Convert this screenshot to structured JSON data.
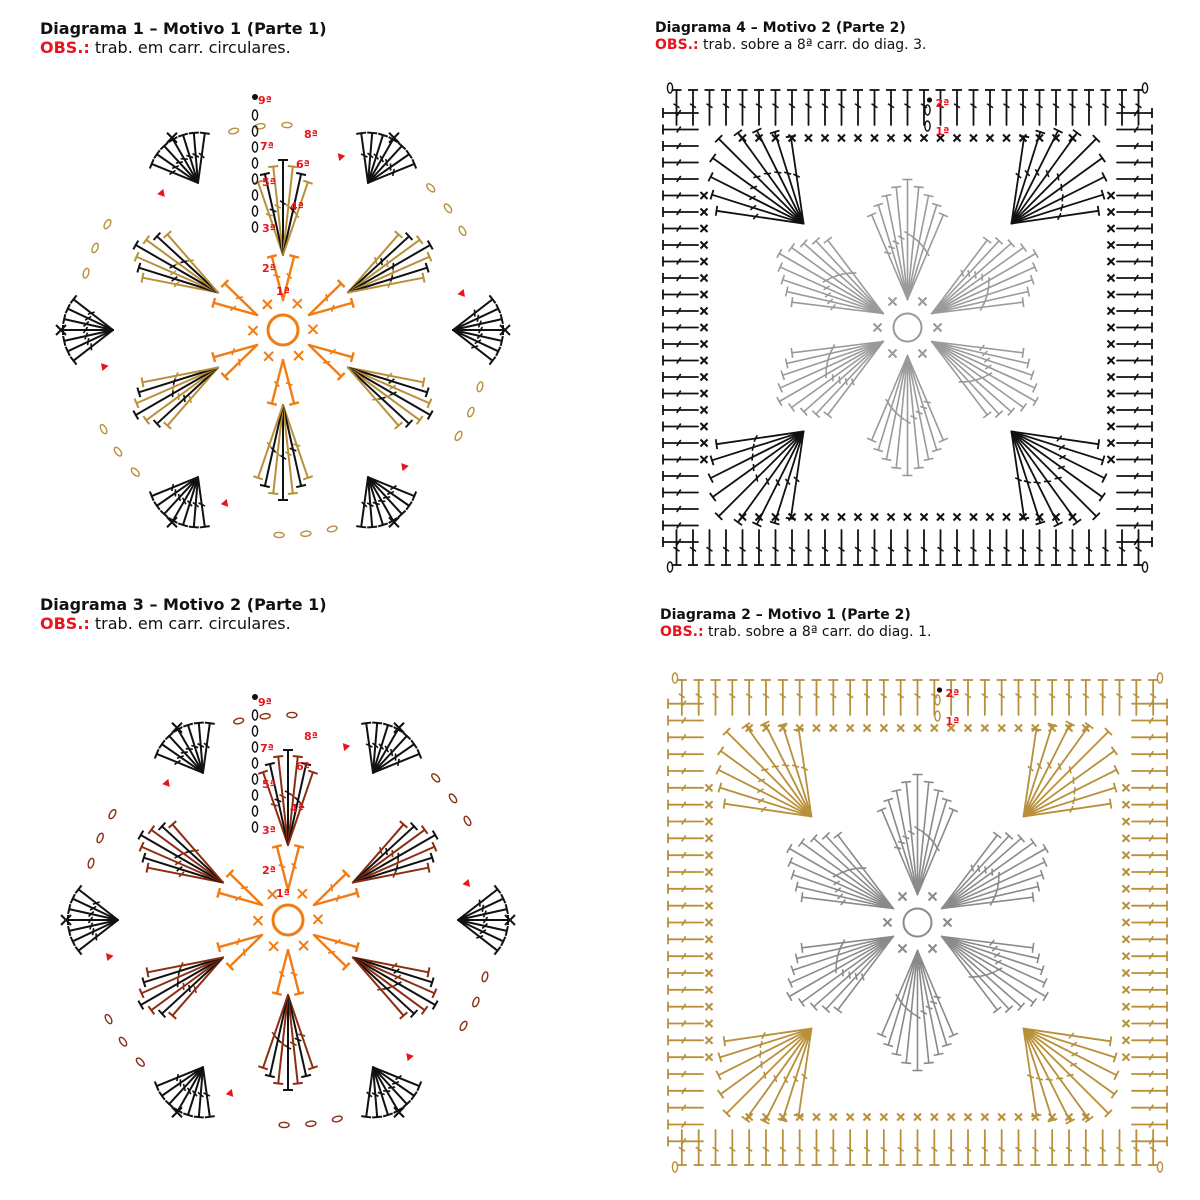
{
  "panels": [
    {
      "id": "d1",
      "title": "Diagrama 1 – Motivo 1 (Parte 1)",
      "obs_label": "OBS.:",
      "obs_text": "trab. em carr. circulares.",
      "shape": "hexagon",
      "colors": {
        "center": "#f07c13",
        "mid": "#111111",
        "alt": "#b8903a",
        "accent": "#e8141c"
      }
    },
    {
      "id": "d4",
      "title": "Diagrama 4 – Motivo 2 (Parte 2)",
      "obs_label": "OBS.:",
      "obs_text": "trab. sobre a 8ª carr. do diag. 3.",
      "shape": "square",
      "colors": {
        "border": "#111111",
        "ghost": "#9a9a9a",
        "accent": "#e8141c"
      }
    },
    {
      "id": "d3",
      "title": "Diagrama 3 – Motivo 2 (Parte 1)",
      "obs_label": "OBS.:",
      "obs_text": "trab. em carr. circulares.",
      "shape": "hexagon",
      "colors": {
        "center": "#f07c13",
        "mid": "#111111",
        "alt": "#8a2e12",
        "accent": "#e8141c"
      }
    },
    {
      "id": "d2",
      "title": "Diagrama 2 – Motivo 1 (Parte 2)",
      "obs_label": "OBS.:",
      "obs_text": "trab. sobre a 8ª carr. do diag. 1.",
      "shape": "square",
      "colors": {
        "border": "#b8903a",
        "ghost": "#8a8a8a",
        "accent": "#e8141c"
      }
    }
  ],
  "hex_round_labels": [
    "1ª",
    "2ª",
    "3ª",
    "4ª",
    "5ª",
    "6ª",
    "7ª",
    "8ª",
    "9ª"
  ],
  "square_round_labels": [
    "1ª",
    "2ª"
  ]
}
